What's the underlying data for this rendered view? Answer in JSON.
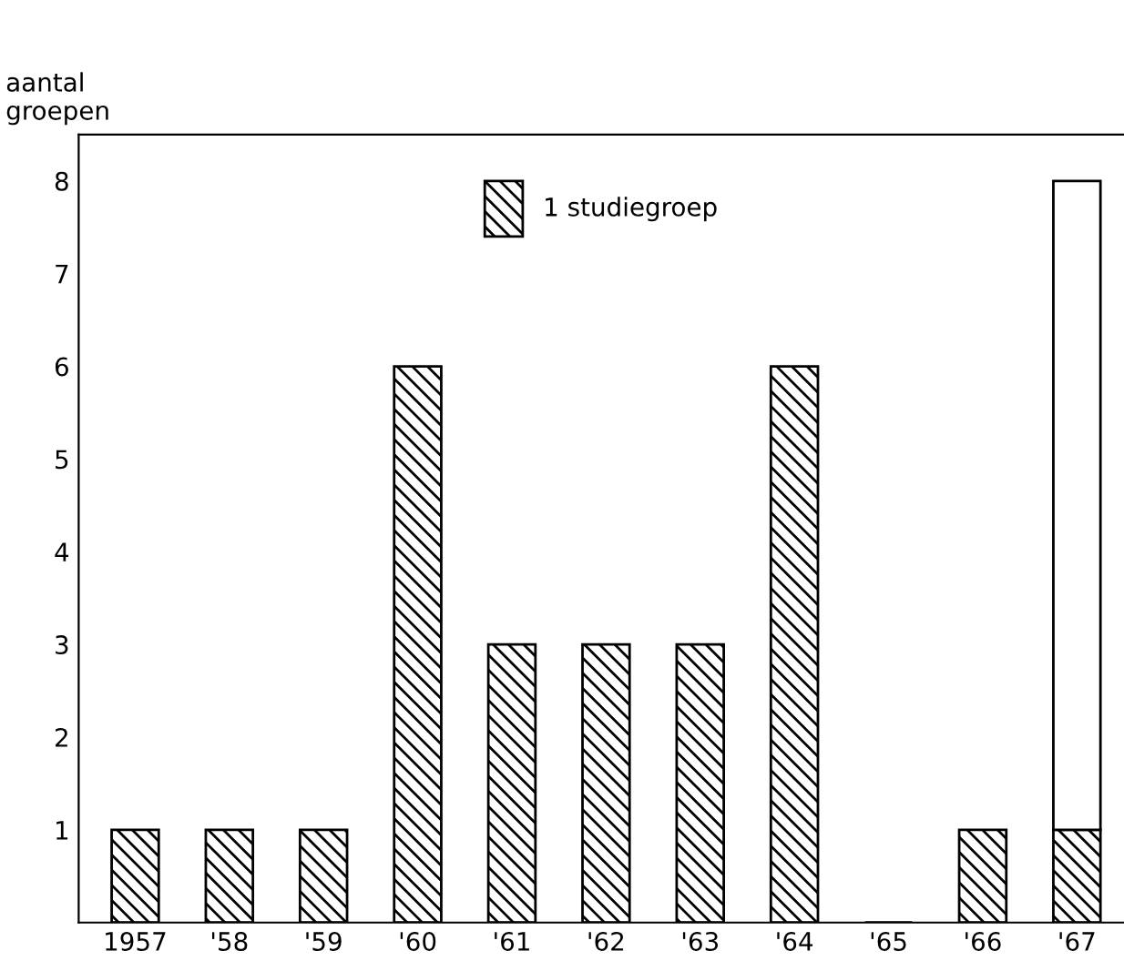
{
  "chart_data": {
    "type": "bar",
    "stacked": true,
    "ylabel": "aantal\ngroepen",
    "categories": [
      "1957",
      "'58",
      "'59",
      "'60",
      "'61",
      "'62",
      "'63",
      "'64",
      "'65",
      "'66",
      "'67"
    ],
    "series": [
      {
        "name": "1 studiegroep",
        "color": "#000000",
        "values": [
          1,
          1,
          1,
          6,
          3,
          3,
          3,
          6,
          0,
          1,
          1
        ]
      },
      {
        "color": "#ffffff",
        "values": [
          null,
          null,
          null,
          null,
          null,
          null,
          null,
          null,
          null,
          null,
          7
        ]
      }
    ],
    "ylim": [
      0,
      8.5
    ],
    "yticks": [
      1,
      2,
      3,
      4,
      5,
      6,
      7,
      8
    ],
    "grid": false,
    "legend": "top"
  }
}
